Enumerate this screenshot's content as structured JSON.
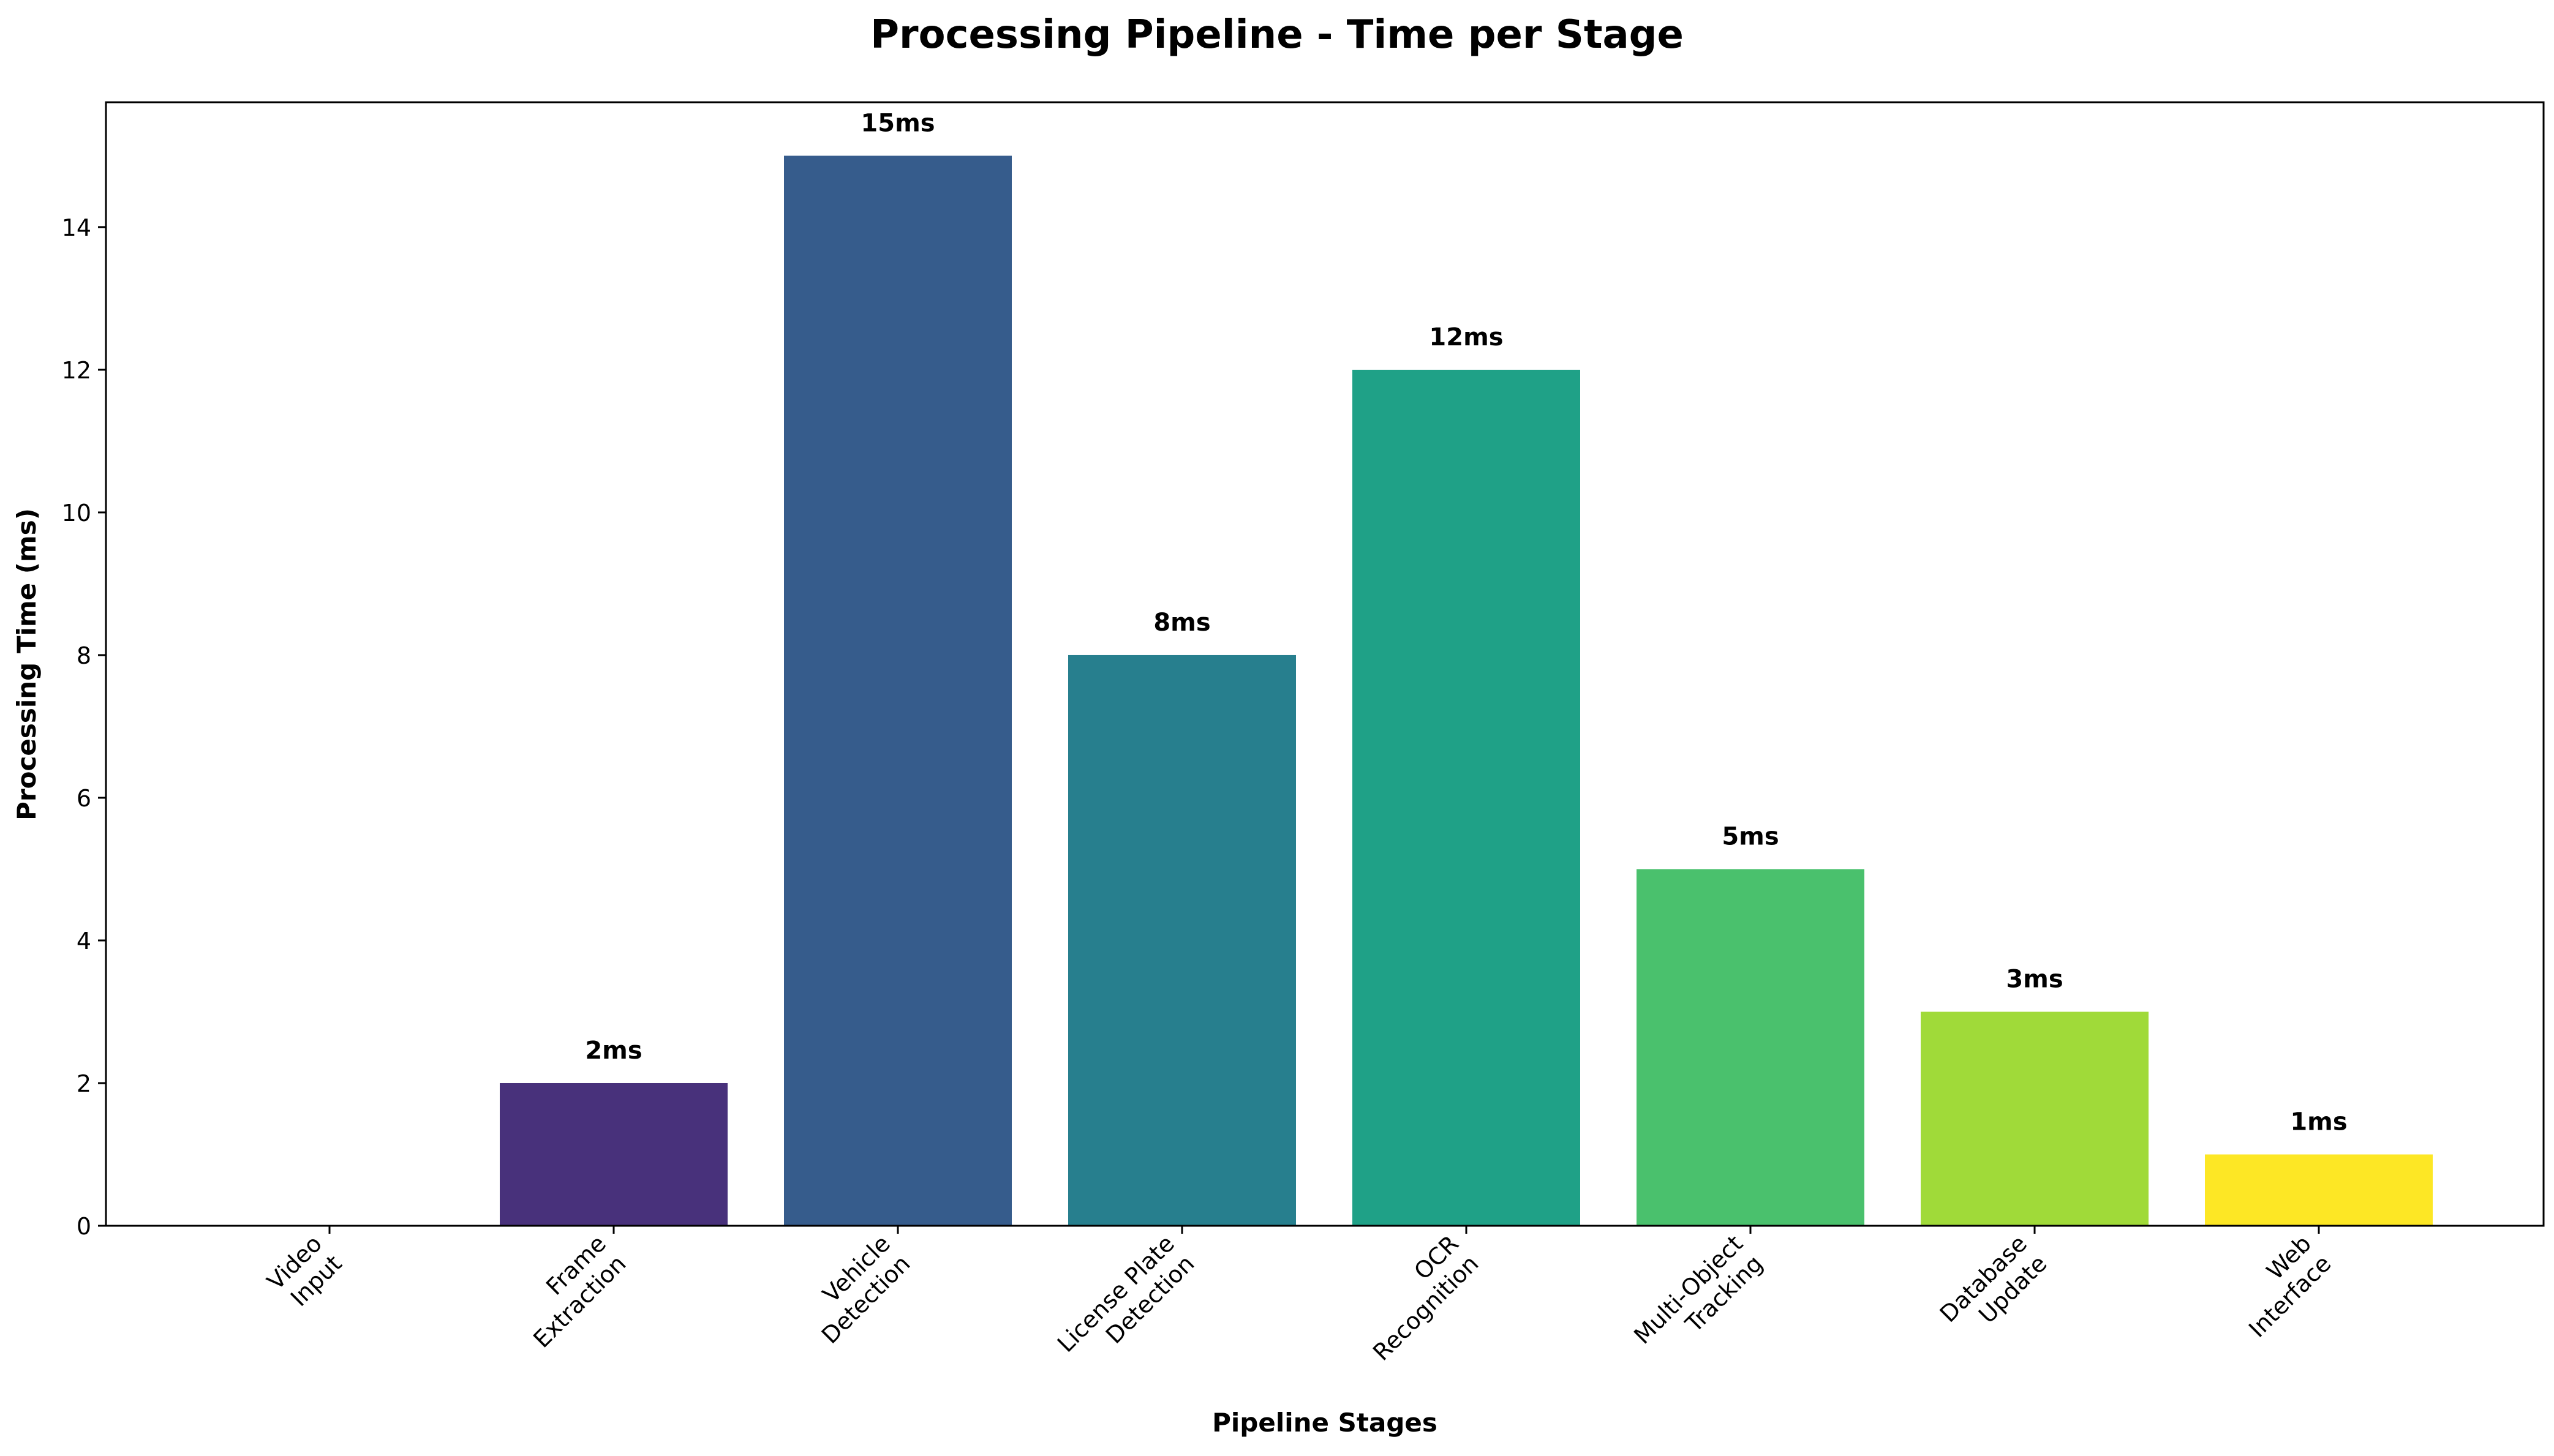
{
  "chart_data": {
    "type": "bar",
    "title": "Processing Pipeline - Time per Stage",
    "xlabel": "Pipeline Stages",
    "ylabel": "Processing Time (ms)",
    "categories": [
      [
        "Video",
        "Input"
      ],
      [
        "Frame",
        "Extraction"
      ],
      [
        "Vehicle",
        "Detection"
      ],
      [
        "License Plate",
        "Detection"
      ],
      [
        "OCR",
        "Recognition"
      ],
      [
        "Multi-Object",
        "Tracking"
      ],
      [
        "Database",
        "Update"
      ],
      [
        "Web",
        "Interface"
      ]
    ],
    "values": [
      0,
      2,
      15,
      8,
      12,
      5,
      3,
      1
    ],
    "value_labels": [
      "",
      "2ms",
      "15ms",
      "8ms",
      "12ms",
      "5ms",
      "3ms",
      "1ms"
    ],
    "colors": [
      "#440154",
      "#48317b",
      "#365c8c",
      "#277f8e",
      "#1fa187",
      "#4ac16d",
      "#a0da39",
      "#fde725"
    ],
    "ylim": [
      0,
      15.75
    ],
    "yticks": [
      0,
      2,
      4,
      6,
      8,
      10,
      12,
      14
    ],
    "grid": false,
    "legend": "none"
  }
}
